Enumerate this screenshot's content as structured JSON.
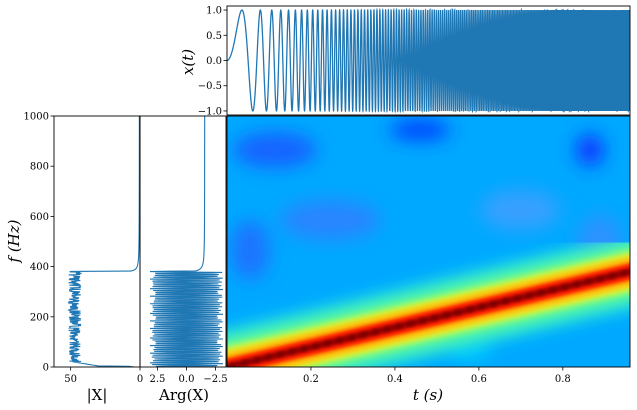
{
  "chart_data": [
    {
      "type": "line",
      "panel": "signal",
      "title": "",
      "xlabel": "",
      "ylabel": "x(t)",
      "xlim": [
        0,
        0.96
      ],
      "ylim": [
        -1.08,
        1.08
      ],
      "yticks": [
        -1.0,
        -0.5,
        0.0,
        0.5,
        1.0
      ],
      "ytick_labels": [
        "−1.0",
        "−0.5",
        "0.0",
        "0.5",
        "1.0"
      ],
      "signal": {
        "kind": "linear-chirp",
        "f0_hz": 0,
        "f1_hz": 380,
        "t_end_s": 0.96,
        "amplitude": 1.0
      },
      "series_color": "#1f77b4",
      "grid": false
    },
    {
      "type": "line",
      "panel": "magnitude",
      "xlabel": "|X|",
      "ylabel": "f (Hz)",
      "x_inverted": true,
      "xlim": [
        62,
        0
      ],
      "ylim": [
        0,
        1000
      ],
      "xticks": [
        50,
        0
      ],
      "xtick_labels": [
        "50",
        "0"
      ],
      "yticks": [
        0,
        200,
        400,
        600,
        800,
        1000
      ],
      "ytick_labels": [
        "0",
        "200",
        "400",
        "600",
        "800",
        "1000"
      ],
      "series_color": "#1f77b4",
      "grid": false
    },
    {
      "type": "line",
      "panel": "phase",
      "xlabel": "Arg(X)",
      "x_inverted": true,
      "xlim": [
        4.0,
        -3.4
      ],
      "ylim": [
        0,
        1000
      ],
      "xticks": [
        2.5,
        0.0,
        -2.5
      ],
      "xtick_labels": [
        "2.5",
        "0.0",
        "−2.5"
      ],
      "series_color": "#1f77b4",
      "grid": false
    },
    {
      "type": "heatmap",
      "panel": "spectrogram",
      "xlabel": "t (s)",
      "xlim": [
        0,
        0.96
      ],
      "ylim": [
        0,
        1000
      ],
      "xticks": [
        0.2,
        0.4,
        0.6,
        0.8
      ],
      "xtick_labels": [
        "0.2",
        "0.4",
        "0.6",
        "0.8"
      ],
      "colormap": "jet",
      "ridge": {
        "t": [
          0.0,
          0.96
        ],
        "f_hz": [
          0,
          380
        ]
      },
      "grid": false
    }
  ]
}
